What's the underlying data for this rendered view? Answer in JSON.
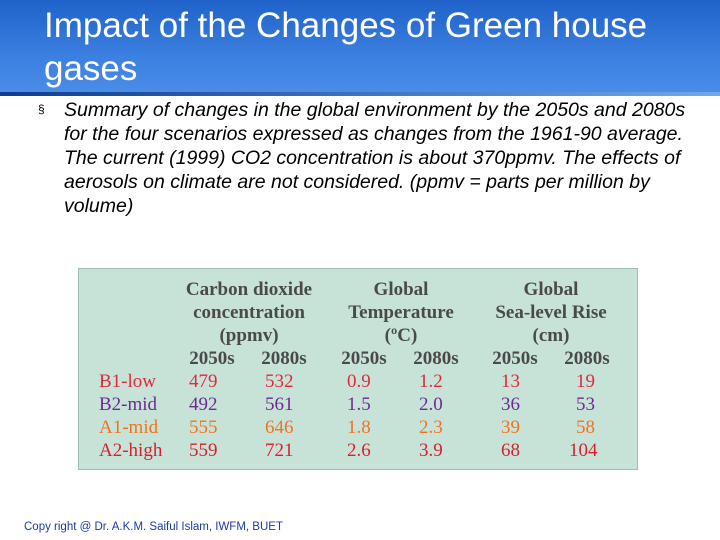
{
  "slide": {
    "title": "Impact of the Changes of Green house gases",
    "bullet_marker": "§",
    "bullet_text": "Summary of changes in the global environment by the 2050s and 2080s for the four scenarios expressed as changes from the 1961-90 average. The current (1999) CO2 concentration is about 370ppmv. The effects of aerosols on climate are not considered. (ppmv = parts per million by volume)",
    "footer": "Copy right @ Dr. A.K.M. Saiful Islam, IWFM, BUET"
  },
  "table": {
    "groups": [
      {
        "line1": "Carbon dioxide",
        "line2": "concentration",
        "line3": "(ppmv)"
      },
      {
        "line1": "Global",
        "line2": "Temperature",
        "line3": "(ºC)"
      },
      {
        "line1": "Global",
        "line2": "Sea-level Rise",
        "line3": "(cm)"
      }
    ],
    "years": [
      "2050s",
      "2080s",
      "2050s",
      "2080s",
      "2050s",
      "2080s"
    ],
    "rows": [
      {
        "scenario": "B1-low",
        "color": "#e02a3a",
        "values": [
          "479",
          "532",
          "0.9",
          "1.2",
          "13",
          "19"
        ]
      },
      {
        "scenario": "B2-mid",
        "color": "#6e2a91",
        "values": [
          "492",
          "561",
          "1.5",
          "2.0",
          "36",
          "53"
        ]
      },
      {
        "scenario": "A1-mid",
        "color": "#f0741e",
        "values": [
          "555",
          "646",
          "1.8",
          "2.3",
          "39",
          "58"
        ]
      },
      {
        "scenario": "A2-high",
        "color": "#d81f2d",
        "values": [
          "559",
          "721",
          "2.6",
          "3.9",
          "68",
          "104"
        ]
      }
    ]
  }
}
